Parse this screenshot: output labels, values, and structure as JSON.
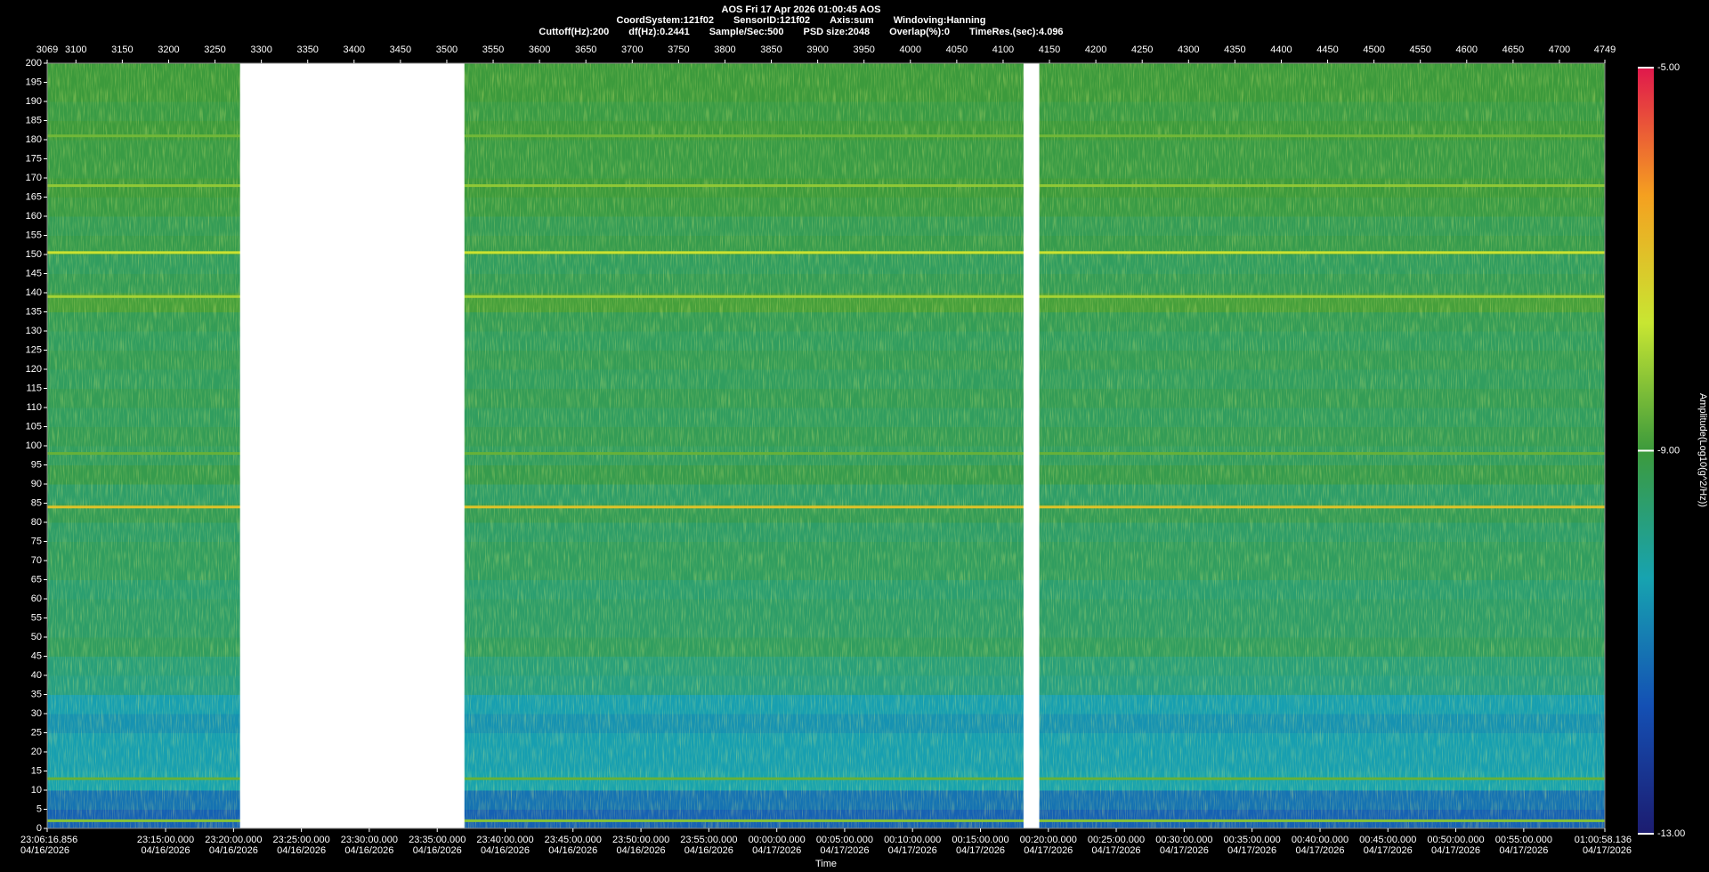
{
  "chart_data": {
    "type": "spectrogram",
    "title": "AOS  Fri 17 Apr 2026 01:00:45  AOS",
    "subtitle": [
      "CoordSystem:121f02",
      "SensorID:121f02",
      "Axis:sum",
      "Windoving:Hanning"
    ],
    "info": [
      "Cuttoff(Hz):200",
      "df(Hz):0.2441",
      "Sample/Sec:500",
      "PSD size:2048",
      "Overlap(%):0",
      "TimeRes.(sec):4.096"
    ],
    "xlabel": "Time",
    "colorbar_label": "Amplitude(Log10(g^2/Hz))",
    "xlim": [
      3069,
      4749
    ],
    "xticks": [
      3069,
      3100,
      3150,
      3200,
      3250,
      3300,
      3350,
      3400,
      3450,
      3500,
      3550,
      3600,
      3650,
      3700,
      3750,
      3800,
      3850,
      3900,
      3950,
      4000,
      4050,
      4100,
      4150,
      4200,
      4250,
      4300,
      4350,
      4400,
      4450,
      4500,
      4550,
      4600,
      4650,
      4700,
      4749
    ],
    "time_ticks": [
      {
        "value": 3069,
        "label": "23:06:16.856",
        "date": "04/16/2026"
      },
      {
        "value": 3196.7,
        "label": "23:15:00.000",
        "date": "04/16/2026"
      },
      {
        "value": 3270.0,
        "label": "23:20:00.000",
        "date": "04/16/2026"
      },
      {
        "value": 3343.2,
        "label": "23:25:00.000",
        "date": "04/16/2026"
      },
      {
        "value": 3416.4,
        "label": "23:30:00.000",
        "date": "04/16/2026"
      },
      {
        "value": 3489.7,
        "label": "23:35:00.000",
        "date": "04/16/2026"
      },
      {
        "value": 3562.9,
        "label": "23:40:00.000",
        "date": "04/16/2026"
      },
      {
        "value": 3636.1,
        "label": "23:45:00.000",
        "date": "04/16/2026"
      },
      {
        "value": 3709.4,
        "label": "23:50:00.000",
        "date": "04/16/2026"
      },
      {
        "value": 3782.6,
        "label": "23:55:00.000",
        "date": "04/16/2026"
      },
      {
        "value": 3855.9,
        "label": "00:00:00.000",
        "date": "04/17/2026"
      },
      {
        "value": 3929.1,
        "label": "00:05:00.000",
        "date": "04/17/2026"
      },
      {
        "value": 4002.3,
        "label": "00:10:00.000",
        "date": "04/17/2026"
      },
      {
        "value": 4075.6,
        "label": "00:15:00.000",
        "date": "04/17/2026"
      },
      {
        "value": 4148.8,
        "label": "00:20:00.000",
        "date": "04/17/2026"
      },
      {
        "value": 4222.0,
        "label": "00:25:00.000",
        "date": "04/17/2026"
      },
      {
        "value": 4295.3,
        "label": "00:30:00.000",
        "date": "04/17/2026"
      },
      {
        "value": 4368.5,
        "label": "00:35:00.000",
        "date": "04/17/2026"
      },
      {
        "value": 4441.8,
        "label": "00:40:00.000",
        "date": "04/17/2026"
      },
      {
        "value": 4515.0,
        "label": "00:45:00.000",
        "date": "04/17/2026"
      },
      {
        "value": 4588.2,
        "label": "00:50:00.000",
        "date": "04/17/2026"
      },
      {
        "value": 4661.5,
        "label": "00:55:00.000",
        "date": "04/17/2026"
      },
      {
        "value": 4749,
        "label": "01:00:58.136",
        "date": "04/17/2026"
      }
    ],
    "ylim": [
      0,
      200
    ],
    "yticks": [
      0,
      5,
      10,
      15,
      20,
      25,
      30,
      35,
      40,
      45,
      50,
      55,
      60,
      65,
      70,
      75,
      80,
      85,
      90,
      95,
      100,
      105,
      110,
      115,
      120,
      125,
      130,
      135,
      140,
      145,
      150,
      155,
      160,
      165,
      170,
      175,
      180,
      185,
      190,
      195,
      200
    ],
    "clim": [
      -13,
      -5
    ],
    "cticks": [
      {
        "value": -13,
        "label": "-13.00"
      },
      {
        "value": -9,
        "label": "-9.00"
      },
      {
        "value": -5,
        "label": "-5.00"
      }
    ],
    "colormap": [
      "#1c1c70",
      "#1450b4",
      "#17a3b0",
      "#3c9a3c",
      "#c8e632",
      "#f5a020",
      "#e0184c"
    ],
    "freq_bins": [
      0,
      5,
      10,
      15,
      20,
      25,
      30,
      35,
      40,
      45,
      50,
      55,
      60,
      65,
      70,
      75,
      80,
      85,
      90,
      95,
      100,
      105,
      110,
      115,
      120,
      125,
      130,
      135,
      140,
      145,
      150,
      155,
      160,
      165,
      170,
      175,
      180,
      185,
      190,
      195,
      200
    ],
    "levels": [
      -11.4,
      -11.1,
      -10.3,
      -10.4,
      -10.4,
      -10.6,
      -10.4,
      -9.8,
      -9.7,
      -9.4,
      -9.5,
      -9.5,
      -9.6,
      -9.4,
      -9.4,
      -9.5,
      -9.3,
      -9.5,
      -9.2,
      -9.4,
      -9.3,
      -9.4,
      -9.3,
      -9.4,
      -9.3,
      -9.4,
      -9.3,
      -8.9,
      -9.3,
      -9.4,
      -9.2,
      -9.3,
      -9.1,
      -9.0,
      -9.1,
      -9.1,
      -9.0,
      -9.1,
      -9.0,
      -9.0
    ],
    "lines": [
      {
        "freq": 84,
        "level": -7.0
      },
      {
        "freq": 139,
        "level": -8.0
      },
      {
        "freq": 150.5,
        "level": -7.6
      },
      {
        "freq": 168,
        "level": -8.2
      },
      {
        "freq": 181,
        "level": -8.5
      },
      {
        "freq": 98,
        "level": -8.6
      },
      {
        "freq": 13,
        "level": -8.6
      },
      {
        "freq": 2,
        "level": -8.3
      }
    ],
    "gaps": [
      [
        3277,
        3519
      ],
      [
        4122,
        4139
      ]
    ]
  }
}
